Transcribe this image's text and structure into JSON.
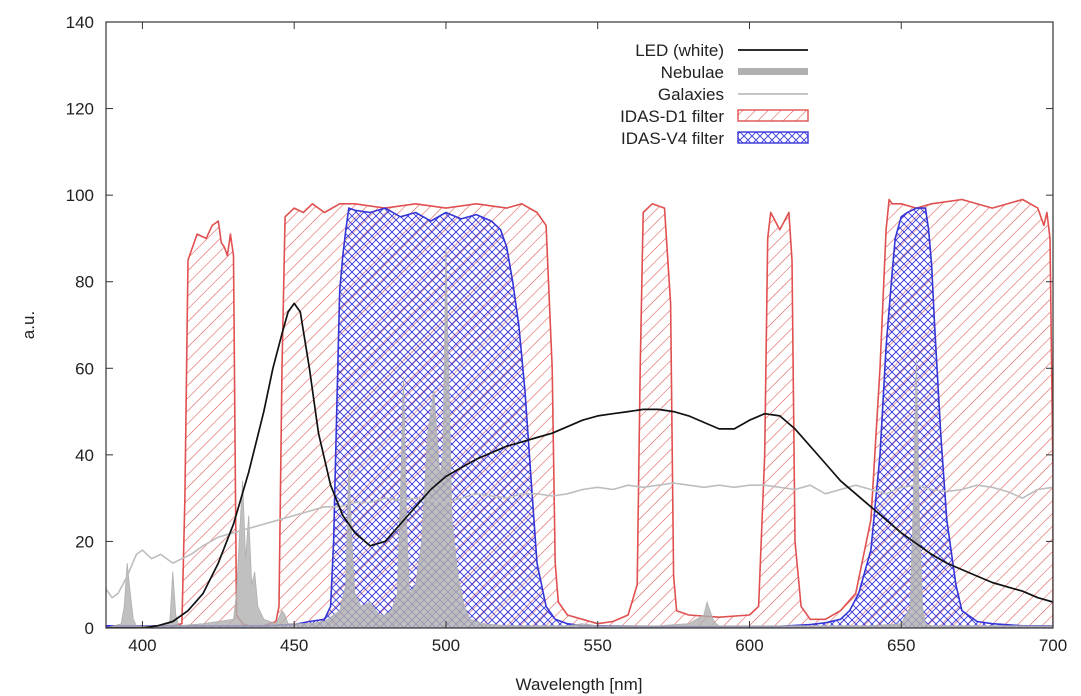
{
  "chart_data": {
    "type": "line",
    "xlabel": "Wavelength [nm]",
    "ylabel": "a.u.",
    "xlim": [
      388,
      700
    ],
    "ylim": [
      0,
      140
    ],
    "xticks": [
      400,
      450,
      500,
      550,
      600,
      650,
      700
    ],
    "yticks": [
      0,
      20,
      40,
      60,
      80,
      100,
      120,
      140
    ],
    "grid": false,
    "legend_position": "top-right",
    "series": [
      {
        "name": "LED (white)",
        "style": "line",
        "color": "#111111",
        "x": [
          388,
          400,
          405,
          410,
          415,
          420,
          425,
          430,
          435,
          440,
          443,
          446,
          448,
          450,
          452,
          455,
          458,
          462,
          466,
          470,
          475,
          480,
          485,
          490,
          495,
          500,
          505,
          510,
          515,
          520,
          525,
          530,
          535,
          540,
          545,
          550,
          555,
          560,
          565,
          570,
          575,
          580,
          585,
          590,
          595,
          600,
          605,
          610,
          615,
          620,
          625,
          630,
          635,
          640,
          645,
          650,
          655,
          660,
          665,
          670,
          675,
          680,
          685,
          690,
          695,
          700
        ],
        "y": [
          0,
          0,
          0.5,
          1.5,
          4,
          8,
          15,
          24,
          36,
          50,
          60,
          68,
          73,
          75,
          73,
          60,
          45,
          33,
          26,
          22,
          19,
          20,
          24,
          28,
          32,
          35,
          37,
          39,
          40.5,
          42,
          43,
          44,
          45,
          46.5,
          48,
          49,
          49.5,
          50,
          50.5,
          50.5,
          50,
          49,
          47.5,
          46,
          46,
          48,
          49.5,
          49,
          46,
          42,
          38,
          34,
          31,
          28,
          25,
          22,
          19.5,
          17,
          15,
          13.5,
          12,
          10.5,
          9.5,
          8.5,
          7,
          6
        ]
      },
      {
        "name": "Nebulae",
        "style": "filled",
        "color": "#b0b0b0",
        "x": [
          388,
          393,
          394,
          395,
          396,
          397,
          398,
          405,
          409,
          410,
          411,
          412,
          420,
          430,
          431,
          432,
          433,
          434,
          435,
          436,
          437,
          438,
          440,
          444,
          446,
          447,
          448,
          450,
          455,
          460,
          465,
          467,
          468,
          469,
          470,
          472,
          475,
          478,
          480,
          482,
          484,
          485,
          486,
          487,
          488,
          490,
          492,
          494,
          496,
          498,
          499,
          500,
          501,
          502,
          504,
          506,
          508,
          512,
          520,
          530,
          540,
          545,
          550,
          560,
          570,
          580,
          585,
          586,
          587,
          588,
          589,
          590,
          592,
          600,
          610,
          620,
          630,
          640,
          650,
          653,
          654,
          655,
          656,
          657,
          658,
          660,
          670,
          680,
          690,
          700
        ],
        "y": [
          0,
          1,
          5,
          15,
          8,
          2,
          0.5,
          0.5,
          1,
          13,
          3,
          0.5,
          1,
          2,
          8,
          22,
          34,
          16,
          26,
          10,
          13,
          5,
          2,
          1,
          4,
          3,
          1,
          1,
          1,
          1.5,
          4,
          10,
          38,
          20,
          8,
          5,
          6,
          3,
          3,
          4,
          8,
          30,
          58,
          25,
          8,
          10,
          20,
          45,
          55,
          35,
          40,
          88,
          55,
          25,
          12,
          5,
          2,
          1,
          0.5,
          0.5,
          0.5,
          1,
          0.5,
          0.5,
          0.5,
          1,
          3,
          6,
          4,
          2,
          1,
          0.5,
          0.5,
          0.5,
          0.5,
          0.5,
          0.5,
          0.5,
          1,
          5,
          30,
          62,
          25,
          5,
          1,
          0.5,
          0.5,
          0.5,
          0.5,
          0.5
        ]
      },
      {
        "name": "Galaxies",
        "style": "line",
        "color": "#bdbdbd",
        "x": [
          388,
          390,
          392,
          395,
          398,
          400,
          403,
          406,
          410,
          413,
          416,
          420,
          425,
          430,
          435,
          440,
          445,
          450,
          455,
          460,
          465,
          470,
          475,
          480,
          485,
          490,
          495,
          500,
          505,
          510,
          515,
          520,
          525,
          530,
          535,
          540,
          545,
          550,
          555,
          560,
          565,
          570,
          575,
          580,
          585,
          590,
          595,
          600,
          605,
          610,
          615,
          620,
          625,
          630,
          635,
          640,
          645,
          650,
          655,
          660,
          665,
          670,
          675,
          680,
          685,
          690,
          695,
          700
        ],
        "y": [
          9,
          7,
          8,
          12,
          17,
          18,
          16,
          17,
          15,
          16,
          17,
          19,
          21,
          22,
          23,
          24,
          25,
          26,
          27,
          28,
          28,
          29,
          29,
          30,
          29.5,
          30,
          29.5,
          29,
          30,
          31,
          30.5,
          30,
          31,
          31,
          30.5,
          31,
          32,
          32.5,
          32,
          33,
          32.5,
          33,
          33.5,
          33,
          32.5,
          33,
          32.5,
          33,
          33,
          32.5,
          32,
          33,
          31,
          32,
          33,
          32,
          31,
          32.5,
          33,
          32,
          31.5,
          32,
          33,
          32.5,
          31.5,
          30,
          32,
          32.5
        ]
      },
      {
        "name": "IDAS-D1 filter",
        "style": "hatched",
        "color": "#e05050",
        "hatch": "single",
        "x": [
          388,
          400,
          410,
          413,
          414,
          415,
          418,
          421,
          423,
          425,
          426,
          427,
          428,
          429,
          430,
          431,
          433,
          435,
          440,
          444,
          445,
          446,
          447,
          450,
          453,
          456,
          460,
          465,
          470,
          480,
          490,
          500,
          510,
          520,
          525,
          530,
          533,
          535,
          536,
          537,
          540,
          545,
          550,
          555,
          560,
          563,
          564,
          565,
          568,
          572,
          574,
          575,
          576,
          580,
          590,
          600,
          603,
          605,
          606,
          607,
          610,
          613,
          614,
          615,
          617,
          620,
          625,
          630,
          635,
          640,
          643,
          645,
          646,
          647,
          650,
          655,
          660,
          670,
          680,
          690,
          695,
          697,
          698,
          699,
          700
        ],
        "y": [
          0.5,
          0.5,
          0.5,
          1,
          30,
          85,
          91,
          90,
          93,
          94,
          89,
          88,
          86,
          91,
          86,
          3,
          1,
          0.5,
          0.5,
          1.5,
          5,
          60,
          95,
          97,
          96,
          98,
          96,
          98,
          98,
          97,
          98,
          97,
          98,
          97,
          98,
          96,
          93,
          60,
          15,
          6,
          3,
          2,
          1,
          1.5,
          3,
          10,
          60,
          96,
          98,
          97,
          75,
          12,
          4,
          3,
          2.5,
          3,
          5,
          40,
          90,
          96,
          92,
          96,
          85,
          20,
          5,
          2,
          2,
          4,
          8,
          25,
          60,
          92,
          99,
          98,
          98,
          97,
          98,
          99,
          97,
          99,
          97,
          93,
          96,
          90,
          35
        ]
      },
      {
        "name": "IDAS-V4 filter",
        "style": "hatched",
        "color": "#3535d8",
        "hatch": "cross",
        "x": [
          388,
          400,
          420,
          440,
          450,
          455,
          460,
          462,
          463,
          464,
          465,
          466,
          467,
          468,
          470,
          475,
          480,
          485,
          490,
          495,
          500,
          505,
          510,
          515,
          518,
          520,
          522,
          524,
          526,
          528,
          530,
          533,
          536,
          540,
          545,
          550,
          580,
          600,
          610,
          620,
          625,
          630,
          633,
          636,
          640,
          643,
          645,
          647,
          648,
          650,
          652,
          655,
          658,
          659,
          660,
          661,
          663,
          665,
          668,
          670,
          675,
          680,
          690,
          700
        ],
        "y": [
          0.5,
          0.5,
          0.5,
          0.5,
          0.8,
          1.5,
          2,
          5,
          20,
          50,
          78,
          86,
          92,
          97,
          96.5,
          96,
          97,
          95,
          96,
          94,
          96,
          94.5,
          95.5,
          94,
          92,
          88,
          80,
          70,
          55,
          35,
          15,
          5,
          2,
          1,
          0.5,
          0.5,
          0.3,
          0.3,
          0.4,
          0.8,
          1.2,
          2,
          4,
          8,
          18,
          40,
          65,
          82,
          90,
          95,
          96,
          97,
          97,
          92,
          84,
          70,
          45,
          25,
          10,
          4,
          1.5,
          1,
          0.5,
          0.5
        ]
      }
    ]
  }
}
